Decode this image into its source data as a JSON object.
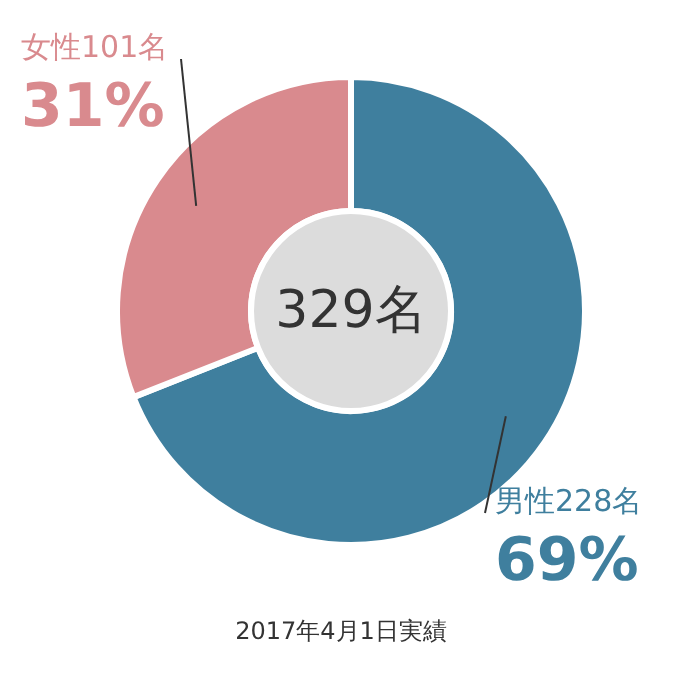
{
  "chart_data": {
    "type": "donut",
    "categories": [
      "男性228名",
      "女性101名"
    ],
    "values": [
      69,
      31
    ],
    "colors": [
      "#3f7f9e",
      "#d98a8e"
    ],
    "value_labels": [
      "69%",
      "31%"
    ],
    "annotations": [
      "329名",
      "2017年4月1日実績"
    ]
  }
}
